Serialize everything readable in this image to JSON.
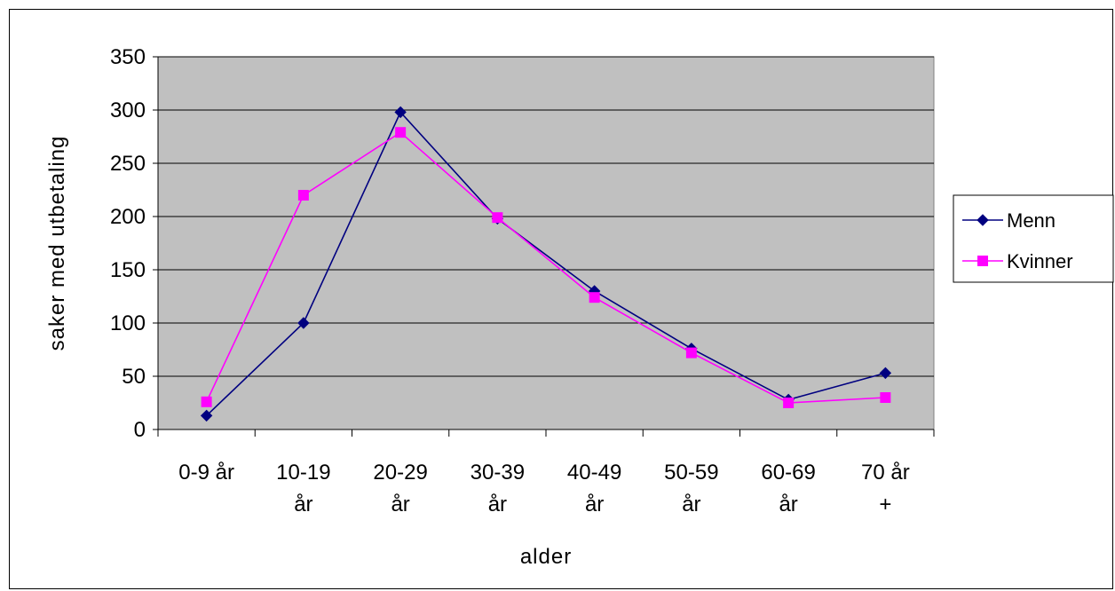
{
  "chart_data": {
    "type": "line",
    "title": "",
    "xlabel": "alder",
    "ylabel": "saker med utbetaling",
    "categories": [
      [
        "0-9 år"
      ],
      [
        "10-19",
        "år"
      ],
      [
        "20-29",
        "år"
      ],
      [
        "30-39",
        "år"
      ],
      [
        "40-49",
        "år"
      ],
      [
        "50-59",
        "år"
      ],
      [
        "60-69",
        "år"
      ],
      [
        "70 år",
        "+"
      ]
    ],
    "ylim": [
      0,
      350
    ],
    "yticks": [
      0,
      50,
      100,
      150,
      200,
      250,
      300,
      350
    ],
    "grid": true,
    "legend_position": "right",
    "plot_background": "#C0C0C0",
    "series": [
      {
        "name": "Menn",
        "color": "#000080",
        "marker": "diamond",
        "values": [
          13,
          100,
          298,
          198,
          130,
          76,
          28,
          53
        ]
      },
      {
        "name": "Kvinner",
        "color": "#FF00FF",
        "marker": "square",
        "values": [
          26,
          220,
          279,
          199,
          124,
          72,
          25,
          30
        ]
      }
    ]
  }
}
